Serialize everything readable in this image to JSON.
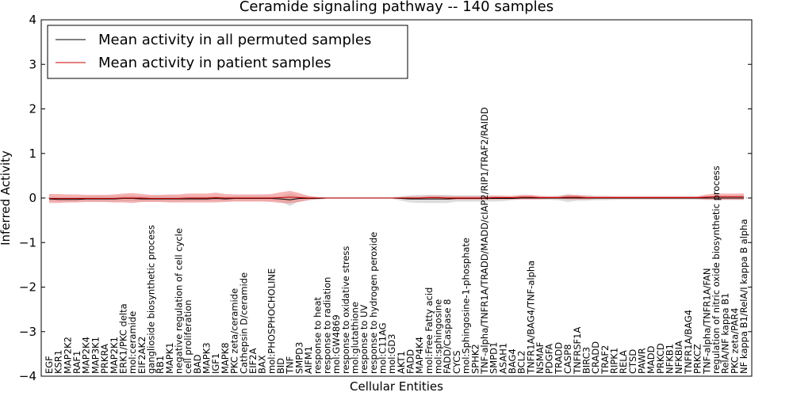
{
  "chart_data": {
    "type": "line",
    "title": "Ceramide signaling pathway -- 140 samples",
    "xlabel": "Cellular Entities",
    "ylabel": "Inferred Activity",
    "ylim": [
      -4,
      4
    ],
    "yticks": [
      -4,
      -3,
      -2,
      -1,
      0,
      1,
      2,
      3,
      4
    ],
    "ytick_labels": [
      "−4",
      "−3",
      "−2",
      "−1",
      "0",
      "1",
      "2",
      "3",
      "4"
    ],
    "legend_position": "top-left",
    "categories": [
      "EGF",
      "KSR1",
      "MAP2K2",
      "RAF1",
      "MAP2K4",
      "MAP3K1",
      "PRKRA",
      "MAP2K1",
      "ERK1/PKC delta",
      "mol:ceramide",
      "EIF2AK2",
      "ganglioside biosynthetic process",
      "RB1",
      "MAPK1",
      "negative regulation of cell cycle",
      "cell proliferation",
      "BAD",
      "MAPK3",
      "IGF1",
      "MAPK8",
      "PKC zeta/ceramide",
      "Cathepsin D/ceramide",
      "EIF2A",
      "BAX",
      "mol:PHOSPHOCHOLINE",
      "BID",
      "TNF",
      "SMPD3",
      "AIFM1",
      "response to heat",
      "response to radiation",
      "mol:GW4869",
      "response to oxidative stress",
      "mol:glutathione",
      "response to UV",
      "response to hydrogen peroxide",
      "mol:C11AG",
      "mol:GD3",
      "AKT1",
      "FADD",
      "MAP4K4",
      "mol:Free Fatty acid",
      "mol:sphingosine",
      "FADD/Caspase 8",
      "CYCS",
      "mol:Sphingosine-1-phosphate",
      "SPHK2",
      "TNF-alpha/TNFR1A/TRADD/MADD/cIAP2/RIP1/TRAF2/RAIDD",
      "SMPD1",
      "ASAH1",
      "BAG4",
      "BCL2",
      "TNFR1A/BAG4/TNF-alpha",
      "NSMAF",
      "PDGFA",
      "TRADD",
      "CASP8",
      "TNFRSF1A",
      "BIRC3",
      "CRADD",
      "TRAF2",
      "RIPK1",
      "RELA",
      "CTSD",
      "PAWR",
      "MADD",
      "PRKCD",
      "NFKB1",
      "NFKBIA",
      "TNFR1A/BAG4",
      "PRKCZ",
      "TNF-alpha/TNFR1A/FAN",
      "regulation of nitric oxide biosynthetic process",
      "RelA/NF kappa B1",
      "PKC zeta/PAR4",
      "NF kappa B1/RelA/I kappa B alpha"
    ],
    "series": [
      {
        "name": "Mean activity in all permuted samples",
        "color": "#000000",
        "values": [
          -0.02,
          -0.03,
          -0.03,
          -0.03,
          -0.02,
          -0.02,
          -0.02,
          -0.02,
          -0.01,
          -0.01,
          -0.02,
          -0.02,
          -0.02,
          -0.02,
          -0.02,
          -0.02,
          -0.02,
          -0.02,
          -0.01,
          -0.02,
          -0.01,
          -0.01,
          -0.01,
          -0.01,
          -0.01,
          -0.02,
          -0.04,
          -0.01,
          -0.01,
          -0.01,
          0.0,
          0.0,
          0.0,
          0.0,
          0.0,
          0.0,
          0.0,
          0.0,
          -0.01,
          -0.02,
          -0.02,
          -0.02,
          -0.02,
          -0.02,
          -0.01,
          -0.01,
          -0.01,
          -0.01,
          -0.01,
          -0.01,
          -0.01,
          0.0,
          0.0,
          0.0,
          0.0,
          0.0,
          0.0,
          0.0,
          0.0,
          0.0,
          0.0,
          0.0,
          0.0,
          0.0,
          0.0,
          0.0,
          0.0,
          0.0,
          0.0,
          0.0,
          0.0,
          0.0,
          0.0,
          0.0,
          0.0,
          0.0
        ],
        "band": [
          0.05,
          0.05,
          0.05,
          0.05,
          0.05,
          0.06,
          0.06,
          0.06,
          0.06,
          0.06,
          0.06,
          0.06,
          0.06,
          0.06,
          0.06,
          0.05,
          0.05,
          0.05,
          0.05,
          0.05,
          0.05,
          0.05,
          0.05,
          0.05,
          0.05,
          0.06,
          0.14,
          0.06,
          0.04,
          0.03,
          0.02,
          0.02,
          0.02,
          0.02,
          0.02,
          0.02,
          0.02,
          0.02,
          0.05,
          0.08,
          0.09,
          0.09,
          0.09,
          0.09,
          0.07,
          0.07,
          0.07,
          0.07,
          0.07,
          0.06,
          0.04,
          0.03,
          0.03,
          0.03,
          0.04,
          0.05,
          0.09,
          0.06,
          0.06,
          0.05,
          0.05,
          0.04,
          0.04,
          0.04,
          0.04,
          0.04,
          0.04,
          0.04,
          0.04,
          0.04,
          0.04,
          0.04,
          0.04,
          0.04,
          0.04,
          0.04
        ]
      },
      {
        "name": "Mean activity in patient samples",
        "color": "#cc0000",
        "fill": "#f08080",
        "values": [
          -0.01,
          -0.01,
          -0.01,
          -0.01,
          -0.01,
          -0.01,
          -0.01,
          -0.01,
          0.0,
          0.0,
          0.0,
          -0.01,
          -0.01,
          -0.01,
          -0.01,
          0.0,
          0.0,
          0.0,
          0.01,
          0.0,
          0.0,
          0.0,
          0.0,
          0.0,
          0.0,
          0.01,
          0.02,
          0.01,
          0.0,
          0.0,
          0.0,
          0.0,
          0.0,
          0.0,
          0.0,
          0.0,
          0.0,
          0.0,
          0.0,
          0.0,
          0.0,
          0.01,
          0.01,
          0.0,
          0.0,
          0.0,
          0.0,
          0.0,
          0.01,
          0.01,
          0.01,
          0.02,
          0.02,
          0.01,
          0.01,
          0.01,
          0.02,
          0.02,
          0.01,
          0.01,
          0.01,
          0.01,
          0.01,
          0.01,
          0.01,
          0.01,
          0.01,
          0.01,
          0.01,
          0.01,
          0.01,
          0.02,
          0.03,
          0.03,
          0.03,
          0.03
        ],
        "band": [
          0.1,
          0.1,
          0.09,
          0.09,
          0.08,
          0.08,
          0.08,
          0.09,
          0.1,
          0.11,
          0.09,
          0.08,
          0.08,
          0.09,
          0.09,
          0.1,
          0.1,
          0.1,
          0.11,
          0.09,
          0.08,
          0.08,
          0.08,
          0.08,
          0.09,
          0.12,
          0.14,
          0.1,
          0.05,
          0.02,
          0.01,
          0.01,
          0.01,
          0.01,
          0.01,
          0.01,
          0.01,
          0.01,
          0.02,
          0.03,
          0.03,
          0.04,
          0.04,
          0.04,
          0.04,
          0.04,
          0.04,
          0.04,
          0.04,
          0.04,
          0.04,
          0.05,
          0.05,
          0.04,
          0.03,
          0.03,
          0.05,
          0.05,
          0.04,
          0.03,
          0.03,
          0.03,
          0.03,
          0.03,
          0.03,
          0.03,
          0.03,
          0.03,
          0.03,
          0.03,
          0.03,
          0.06,
          0.07,
          0.07,
          0.07,
          0.07
        ]
      }
    ]
  }
}
